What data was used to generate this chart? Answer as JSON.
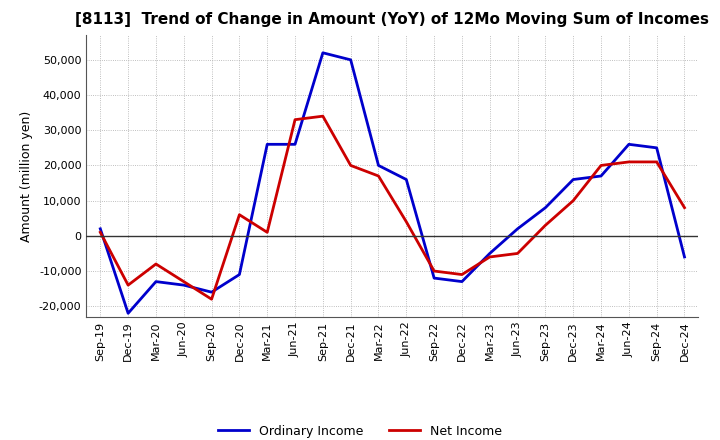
{
  "title": "[8113]  Trend of Change in Amount (YoY) of 12Mo Moving Sum of Incomes",
  "ylabel": "Amount (million yen)",
  "ylim": [
    -23000,
    57000
  ],
  "yticks": [
    -20000,
    -10000,
    0,
    10000,
    20000,
    30000,
    40000,
    50000
  ],
  "x_labels": [
    "Sep-19",
    "Dec-19",
    "Mar-20",
    "Jun-20",
    "Sep-20",
    "Dec-20",
    "Mar-21",
    "Jun-21",
    "Sep-21",
    "Dec-21",
    "Mar-22",
    "Jun-22",
    "Sep-22",
    "Dec-22",
    "Mar-23",
    "Jun-23",
    "Sep-23",
    "Dec-23",
    "Mar-24",
    "Jun-24",
    "Sep-24",
    "Dec-24"
  ],
  "ordinary_income": [
    2000,
    -22000,
    -13000,
    -14000,
    -16000,
    -11000,
    26000,
    26000,
    52000,
    50000,
    20000,
    16000,
    -12000,
    -13000,
    -5000,
    2000,
    8000,
    16000,
    17000,
    26000,
    25000,
    -6000
  ],
  "net_income": [
    1000,
    -14000,
    -8000,
    -13000,
    -18000,
    6000,
    1000,
    33000,
    34000,
    20000,
    17000,
    4000,
    -10000,
    -11000,
    -6000,
    -5000,
    3000,
    10000,
    20000,
    21000,
    21000,
    8000
  ],
  "ordinary_color": "#0000cc",
  "net_color": "#cc0000",
  "grid_color": "#aaaaaa",
  "background_color": "#ffffff",
  "plot_bg_color": "#ffffff",
  "zero_line_color": "#333333"
}
